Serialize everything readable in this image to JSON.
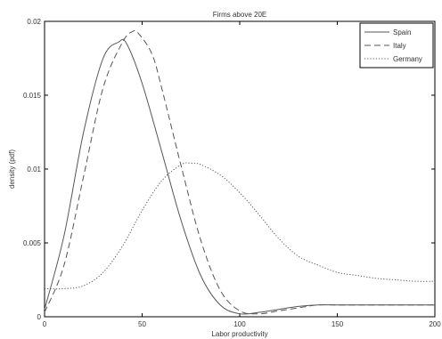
{
  "chart_data": {
    "type": "line",
    "title": "Firms above 20E",
    "xlabel": "Labor productivity",
    "ylabel": "density (pdf)",
    "xlim": [
      0,
      200
    ],
    "ylim": [
      0,
      0.02
    ],
    "grid": false,
    "legend_position": "top-right",
    "x_ticks": [
      0,
      50,
      100,
      150,
      200
    ],
    "x_tick_labels": [
      "0",
      "50",
      "100",
      "150",
      "200"
    ],
    "y_ticks": [
      0,
      0.005,
      0.01,
      0.015,
      0.02
    ],
    "y_tick_labels": [
      "0",
      "0.005",
      "0.01",
      "0.015",
      "0.02"
    ],
    "series": [
      {
        "name": "Spain",
        "style": "solid",
        "color": "#555555",
        "x": [
          0,
          10,
          20,
          30,
          38,
          42,
          50,
          60,
          70,
          80,
          90,
          100,
          110,
          120,
          130,
          140,
          150,
          160,
          170,
          180,
          190,
          200
        ],
        "y": [
          0.0005,
          0.0055,
          0.0125,
          0.0175,
          0.0186,
          0.0185,
          0.0158,
          0.0112,
          0.0065,
          0.0028,
          0.0008,
          0.0002,
          0.0003,
          0.0005,
          0.0007,
          0.0008,
          0.0008,
          0.0008,
          0.0008,
          0.0008,
          0.0008,
          0.0008
        ]
      },
      {
        "name": "Italy",
        "style": "dashed",
        "color": "#555555",
        "x": [
          0,
          10,
          20,
          30,
          40,
          45,
          48,
          55,
          60,
          70,
          80,
          90,
          100,
          110,
          120,
          130,
          140,
          150,
          160,
          170,
          180,
          190,
          200
        ],
        "y": [
          0.0003,
          0.0035,
          0.0095,
          0.0155,
          0.0186,
          0.0193,
          0.0192,
          0.0178,
          0.0155,
          0.0102,
          0.0052,
          0.0018,
          0.0004,
          0.0002,
          0.0004,
          0.0006,
          0.0008,
          0.0008,
          0.0008,
          0.0008,
          0.0008,
          0.0008,
          0.0008
        ]
      },
      {
        "name": "Germany",
        "style": "dotted",
        "color": "#555555",
        "x": [
          0,
          10,
          20,
          30,
          40,
          50,
          60,
          70,
          75,
          80,
          90,
          100,
          110,
          120,
          130,
          140,
          150,
          160,
          170,
          180,
          190,
          200
        ],
        "y": [
          0.0019,
          0.0019,
          0.0021,
          0.003,
          0.0048,
          0.0072,
          0.0092,
          0.0103,
          0.0104,
          0.0103,
          0.0096,
          0.0084,
          0.0069,
          0.0053,
          0.0041,
          0.0035,
          0.003,
          0.0028,
          0.0026,
          0.0025,
          0.0024,
          0.0024
        ]
      }
    ]
  }
}
